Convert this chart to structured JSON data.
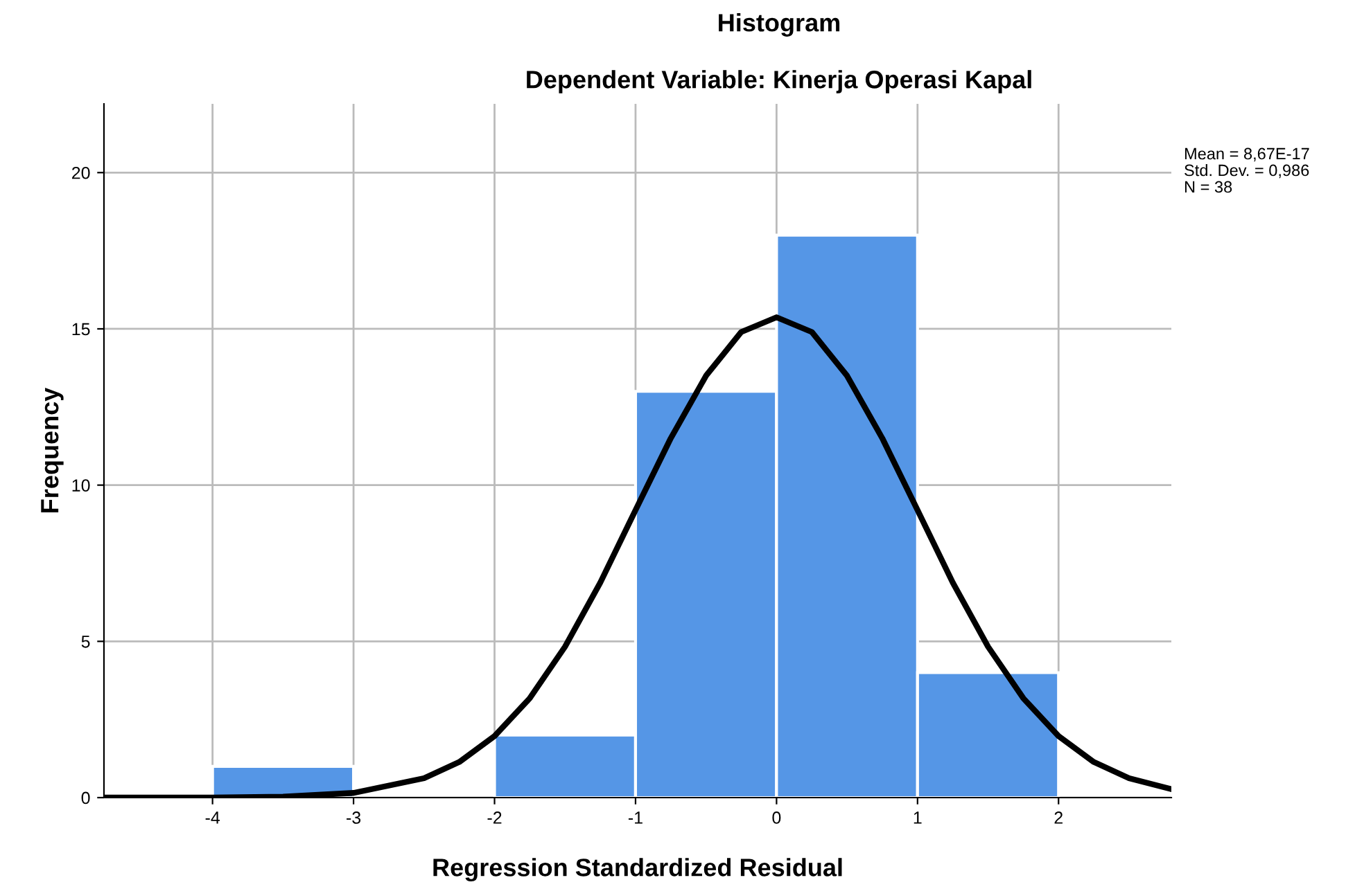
{
  "chart_data": {
    "type": "histogram",
    "title": "Histogram",
    "subtitle": "Dependent Variable: Kinerja Operasi Kapal",
    "xlabel": "Regression Standardized Residual",
    "ylabel": "Frequency",
    "series": [
      {
        "bins": [
          -4,
          -3,
          -2,
          -1,
          0,
          1,
          2
        ],
        "values": [
          1,
          0,
          2,
          13,
          18,
          4
        ],
        "color": "#5596e6"
      },
      {
        "type": "line",
        "color": "#000000",
        "x": [
          -4.77,
          -4,
          -3.5,
          -3,
          -2.5,
          -2.25,
          -2,
          -1.75,
          -1.5,
          -1.25,
          -1,
          -0.75,
          -0.5,
          -0.25,
          0,
          0.25,
          0.5,
          0.75,
          1,
          1.25,
          1.5,
          1.75,
          2,
          2.25,
          2.5,
          2.8
        ],
        "values": [
          0,
          0,
          0.03,
          0.15,
          0.62,
          1.14,
          1.97,
          3.18,
          4.83,
          6.88,
          9.2,
          11.5,
          13.5,
          14.9,
          15.37,
          14.9,
          13.5,
          11.5,
          9.2,
          6.88,
          4.83,
          3.18,
          1.97,
          1.14,
          0.62,
          0.27
        ]
      }
    ],
    "xlim": [
      -4.77,
      2.8
    ],
    "ylim": [
      0,
      22.2
    ],
    "xticks": [
      -4,
      -3,
      -2,
      -1,
      0,
      1,
      2
    ],
    "yticks": [
      0,
      5,
      10,
      15,
      20
    ],
    "grid": true,
    "annotations": [
      "Mean = 8,67E-17",
      "Std. Dev. = 0,986",
      "N = 38"
    ]
  }
}
